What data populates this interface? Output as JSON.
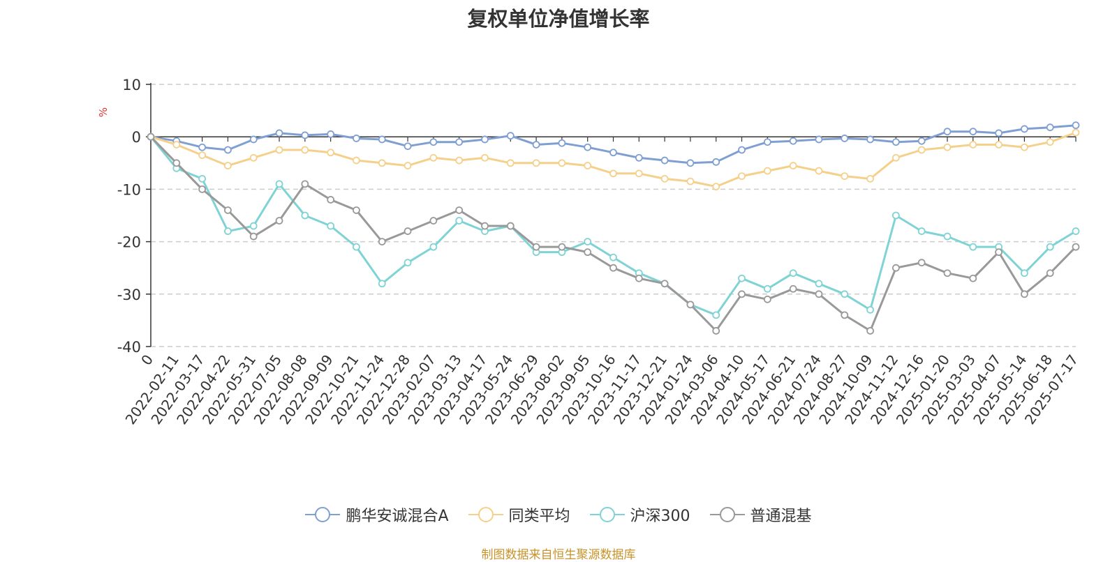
{
  "chart_data": {
    "type": "line",
    "title": "复权单位净值增长率",
    "ylabel": "%",
    "ylim": [
      -40,
      10
    ],
    "yticks": [
      10,
      0,
      -10,
      -20,
      -30,
      -40
    ],
    "grid": true,
    "legend_position": "bottom",
    "source": "制图数据来自恒生聚源数据库",
    "categories": [
      "0",
      "2022-02-11",
      "2022-03-17",
      "2022-04-22",
      "2022-05-31",
      "2022-07-05",
      "2022-08-08",
      "2022-09-09",
      "2022-10-21",
      "2022-11-24",
      "2022-12-28",
      "2023-02-07",
      "2023-03-13",
      "2023-04-17",
      "2023-05-24",
      "2023-06-29",
      "2023-08-02",
      "2023-09-05",
      "2023-10-16",
      "2023-11-17",
      "2023-12-21",
      "2024-01-24",
      "2024-03-06",
      "2024-04-10",
      "2024-05-17",
      "2024-06-21",
      "2024-07-24",
      "2024-08-27",
      "2024-10-09",
      "2024-11-12",
      "2024-12-16",
      "2025-01-20",
      "2025-03-03",
      "2025-04-07",
      "2025-05-14",
      "2025-06-18",
      "2025-07-17"
    ],
    "series": [
      {
        "name": "鹏华安诚混合A",
        "color": "#7f9fd3",
        "values": [
          0,
          -0.8,
          -2,
          -2.5,
          -0.5,
          0.7,
          0.3,
          0.5,
          -0.3,
          -0.5,
          -1.8,
          -1,
          -1,
          -0.5,
          0.2,
          -1.5,
          -1.2,
          -2,
          -3,
          -4,
          -4.5,
          -5,
          -4.8,
          -2.5,
          -1,
          -0.8,
          -0.5,
          -0.3,
          -0.5,
          -1,
          -0.8,
          1,
          1,
          0.7,
          1.5,
          1.8,
          2.2
        ]
      },
      {
        "name": "同类平均",
        "color": "#f5d08a",
        "values": [
          0,
          -1.5,
          -3.5,
          -5.5,
          -4,
          -2.5,
          -2.5,
          -3,
          -4.5,
          -5,
          -5.5,
          -4,
          -4.5,
          -4,
          -5,
          -5,
          -5,
          -5.5,
          -7,
          -7,
          -8,
          -8.5,
          -9.5,
          -7.5,
          -6.5,
          -5.5,
          -6.5,
          -7.5,
          -8,
          -4,
          -2.5,
          -2,
          -1.5,
          -1.5,
          -2,
          -1,
          0.8
        ]
      },
      {
        "name": "沪深300",
        "color": "#7fd3d4",
        "values": [
          0,
          -6,
          -8,
          -18,
          -17,
          -9,
          -15,
          -17,
          -21,
          -28,
          -24,
          -21,
          -16,
          -18,
          -17,
          -22,
          -22,
          -20,
          -23,
          -26,
          -28,
          -32,
          -34,
          -27,
          -29,
          -26,
          -28,
          -30,
          -33,
          -15,
          -18,
          -19,
          -21,
          -21,
          -26,
          -21,
          -18
        ]
      },
      {
        "name": "普通混基",
        "color": "#999999",
        "values": [
          0,
          -5,
          -10,
          -14,
          -19,
          -16,
          -9,
          -12,
          -14,
          -20,
          -18,
          -16,
          -14,
          -17,
          -17,
          -21,
          -21,
          -22,
          -25,
          -27,
          -28,
          -32,
          -37,
          -30,
          -31,
          -29,
          -30,
          -34,
          -37,
          -25,
          -24,
          -26,
          -27,
          -22,
          -30,
          -26,
          -21
        ]
      }
    ]
  }
}
